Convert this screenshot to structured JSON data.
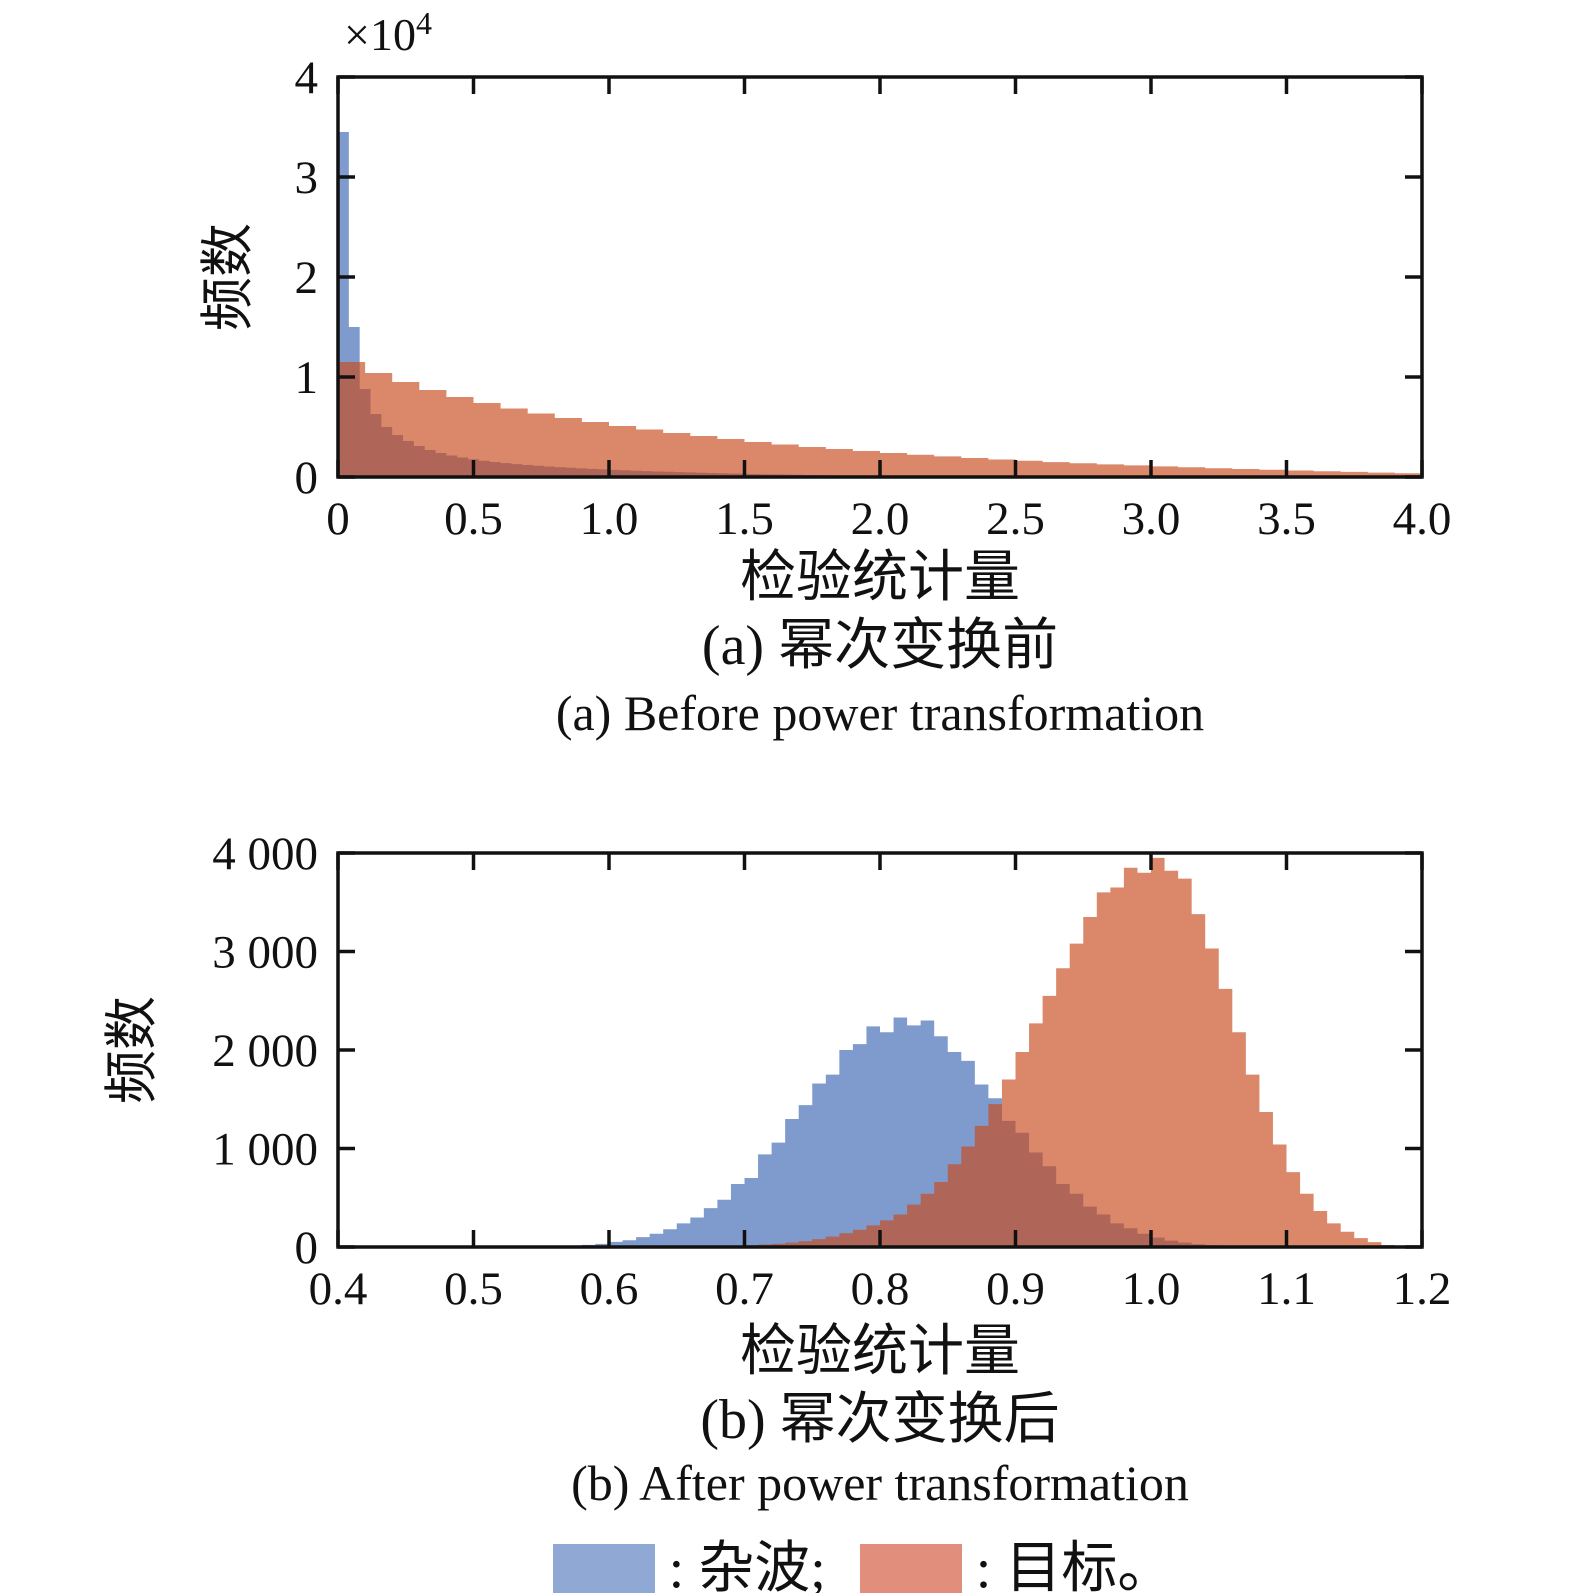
{
  "figure": {
    "background": "#ffffff"
  },
  "colors": {
    "axis": "#111111",
    "clutter_fill": "#7F9BCE",
    "target_fill_rgb": "201,73,27",
    "target_alpha": 0.66,
    "overlap_seen": "#B06A60",
    "legend_clutter": "#8FA9D4",
    "legend_target": "#E18F7C"
  },
  "legend": {
    "clutter_label": ": 杂波;",
    "target_label": ": 目标。"
  },
  "chart_data": [
    {
      "id": "before",
      "type": "bar",
      "xlabel": "检验统计量",
      "ylabel": "频数",
      "title_zh": "(a) 幂次变换前",
      "title_en": "(a) Before power transformation",
      "y_multiplier": "×10",
      "y_multiplier_exp": "4",
      "xlim": [
        0,
        4
      ],
      "ylim": [
        0,
        40000
      ],
      "grid": false,
      "x_ticks": [
        0,
        0.5,
        1,
        1.5,
        2,
        2.5,
        3,
        3.5,
        4
      ],
      "x_tick_labels": [
        "0",
        "0.5",
        "1.0",
        "1.5",
        "2.0",
        "2.5",
        "3.0",
        "3.5",
        "4.0"
      ],
      "y_ticks": [
        0,
        10000,
        20000,
        30000,
        40000
      ],
      "y_tick_labels": [
        "0",
        "1",
        "2",
        "3",
        "4"
      ],
      "series": [
        {
          "name": "杂波",
          "role": "clutter",
          "bin_start": 0,
          "bin_width": 0.04,
          "values": [
            34500,
            15000,
            8800,
            6300,
            5000,
            4200,
            3600,
            3100,
            2700,
            2400,
            2150,
            1950,
            1780,
            1630,
            1500,
            1390,
            1290,
            1200,
            1120,
            1050,
            980,
            920,
            860,
            810,
            760,
            715,
            670,
            630,
            590,
            555,
            520,
            490,
            460,
            430,
            400,
            375,
            350,
            325,
            300,
            280,
            260,
            240,
            220,
            200,
            185,
            170,
            155,
            140,
            130,
            120,
            110,
            100,
            90,
            80,
            72,
            64,
            56,
            50,
            44,
            38,
            33,
            28,
            24,
            20,
            17,
            14,
            11,
            9,
            7,
            5
          ]
        },
        {
          "name": "目标",
          "role": "target",
          "bin_start": 0,
          "bin_width": 0.1,
          "values": [
            11500,
            10400,
            9500,
            8700,
            8000,
            7400,
            6850,
            6350,
            5900,
            5500,
            5100,
            4750,
            4400,
            4100,
            3800,
            3500,
            3250,
            3000,
            2800,
            2600,
            2400,
            2230,
            2060,
            1900,
            1750,
            1620,
            1490,
            1370,
            1260,
            1160,
            1060,
            970,
            880,
            800,
            720,
            650,
            580,
            510,
            440,
            380
          ]
        }
      ]
    },
    {
      "id": "after",
      "type": "bar",
      "xlabel": "检验统计量",
      "ylabel": "频数",
      "title_zh": "(b) 幂次变换后",
      "title_en": "(b) After power transformation",
      "y_multiplier": "",
      "y_multiplier_exp": "",
      "xlim": [
        0.4,
        1.2
      ],
      "ylim": [
        0,
        4000
      ],
      "grid": false,
      "x_ticks": [
        0.4,
        0.5,
        0.6,
        0.7,
        0.8,
        0.9,
        1.0,
        1.1,
        1.2
      ],
      "x_tick_labels": [
        "0.4",
        "0.5",
        "0.6",
        "0.7",
        "0.8",
        "0.9",
        "1.0",
        "1.1",
        "1.2"
      ],
      "y_ticks": [
        0,
        1000,
        2000,
        3000,
        4000
      ],
      "y_tick_labels": [
        "0",
        "1 000",
        "2 000",
        "3 000",
        "4 000"
      ],
      "series": [
        {
          "name": "杂波",
          "role": "clutter",
          "bin_start": 0.55,
          "bin_width": 0.01,
          "values": [
            6,
            10,
            14,
            22,
            32,
            52,
            68,
            100,
            135,
            180,
            240,
            300,
            395,
            480,
            640,
            700,
            940,
            1060,
            1300,
            1440,
            1660,
            1750,
            2000,
            2060,
            2240,
            2180,
            2330,
            2250,
            2300,
            2140,
            1980,
            1890,
            1650,
            1510,
            1280,
            1160,
            960,
            820,
            640,
            540,
            410,
            330,
            240,
            190,
            135,
            95,
            65,
            45,
            28,
            18,
            10
          ]
        },
        {
          "name": "目标",
          "role": "target",
          "bin_start": 0.63,
          "bin_width": 0.01,
          "values": [
            2,
            3,
            4,
            6,
            8,
            10,
            14,
            18,
            25,
            32,
            45,
            60,
            80,
            105,
            140,
            175,
            220,
            270,
            330,
            430,
            540,
            660,
            840,
            1020,
            1230,
            1450,
            1700,
            1980,
            2270,
            2550,
            2830,
            3080,
            3350,
            3600,
            3650,
            3850,
            3800,
            3950,
            3820,
            3740,
            3380,
            3030,
            2620,
            2180,
            1750,
            1370,
            1040,
            760,
            540,
            365,
            240,
            155,
            90,
            50,
            20
          ]
        }
      ]
    }
  ]
}
